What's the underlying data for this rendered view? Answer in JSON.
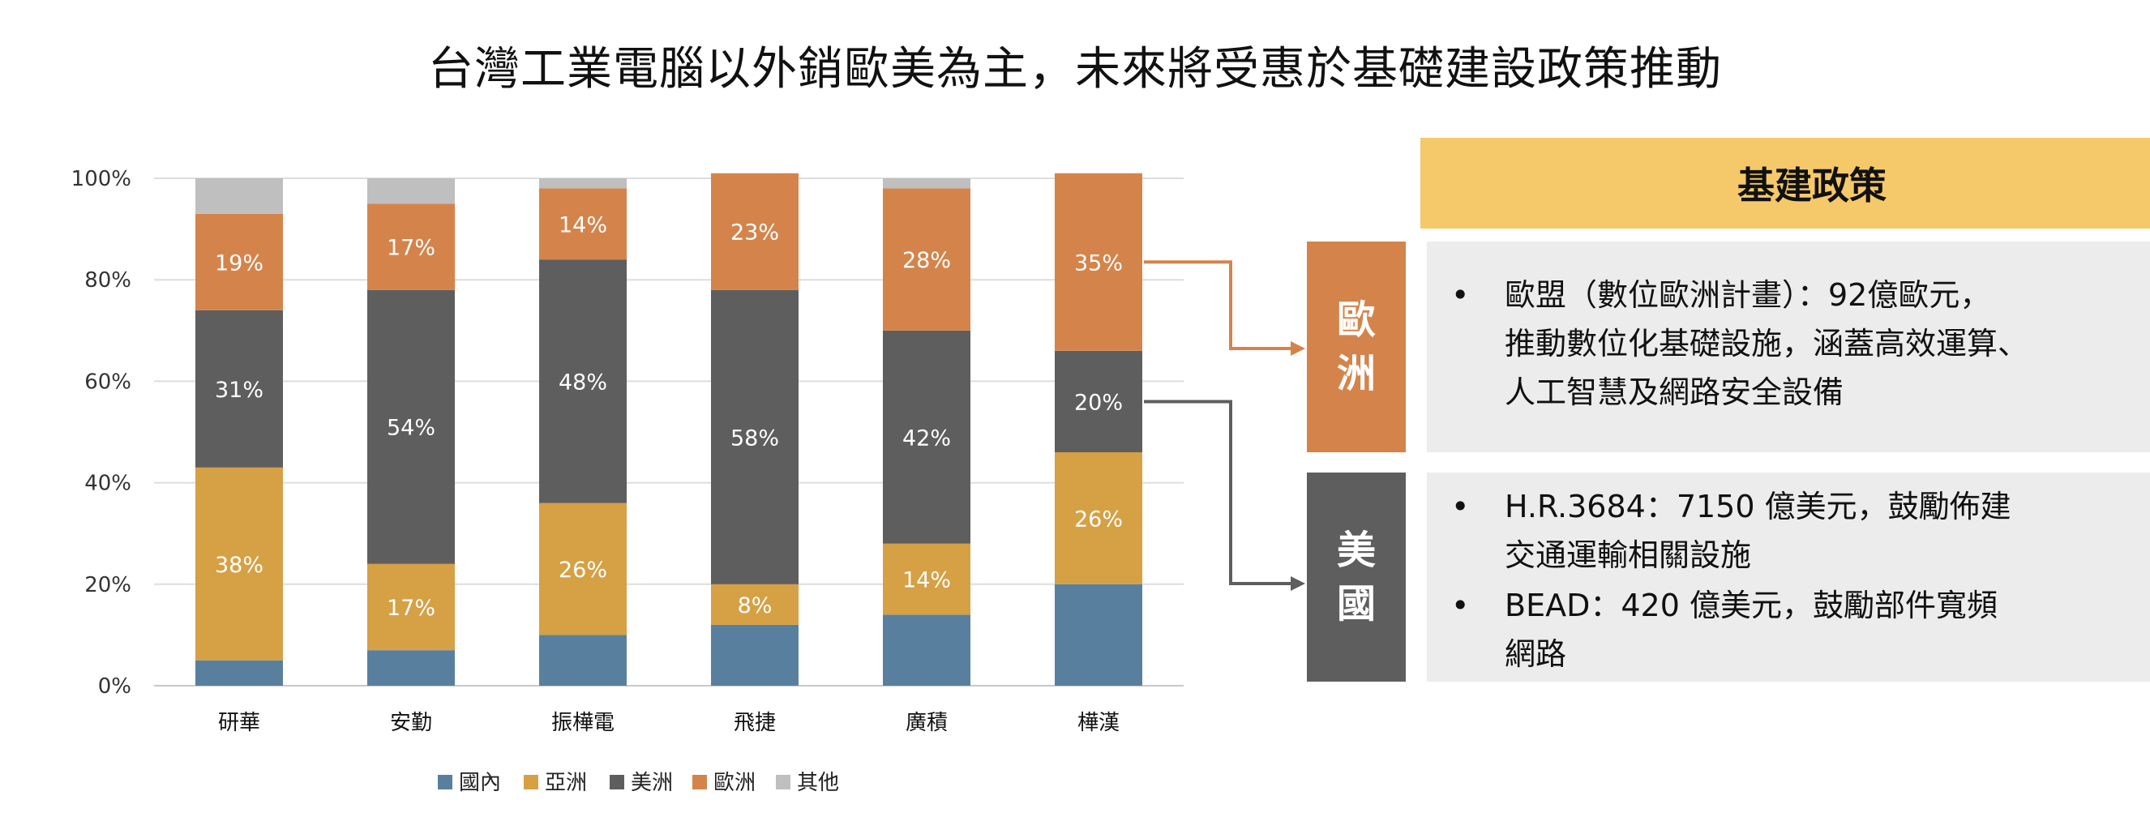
{
  "title": "台灣工業電腦以外銷歐美為主，未來將受惠於基礎建設政策推動",
  "chart_data": {
    "type": "bar",
    "stacked": true,
    "percent": true,
    "categories": [
      "研華",
      "安勤",
      "振樺電",
      "飛捷",
      "廣積",
      "樺漢"
    ],
    "series": [
      {
        "name": "國內",
        "color": "#58809E",
        "values": [
          5,
          7,
          10,
          12,
          14,
          20
        ],
        "labels": [
          "",
          "",
          "",
          "",
          "",
          ""
        ]
      },
      {
        "name": "亞洲",
        "color": "#D6A044",
        "values": [
          38,
          17,
          26,
          8,
          14,
          26
        ],
        "labels": [
          "38%",
          "17%",
          "26%",
          "8%",
          "14%",
          "26%"
        ]
      },
      {
        "name": "美洲",
        "color": "#5E5E5E",
        "values": [
          31,
          54,
          48,
          58,
          42,
          20
        ],
        "labels": [
          "31%",
          "54%",
          "48%",
          "58%",
          "42%",
          "20%"
        ]
      },
      {
        "name": "歐洲",
        "color": "#D4844B",
        "values": [
          19,
          17,
          14,
          23,
          28,
          35
        ],
        "labels": [
          "19%",
          "17%",
          "14%",
          "23%",
          "28%",
          "35%"
        ]
      },
      {
        "name": "其他",
        "color": "#BFBFBF",
        "values": [
          7,
          5,
          2,
          0,
          2,
          0
        ],
        "labels": [
          "",
          "",
          "",
          "",
          "",
          ""
        ]
      }
    ],
    "y_ticks": [
      "0%",
      "20%",
      "40%",
      "60%",
      "80%",
      "100%"
    ],
    "ylim": [
      0,
      100
    ],
    "grid": true,
    "legend": "bottom"
  },
  "policy": {
    "header": "基建政策",
    "europe": {
      "label_line1": "歐",
      "label_line2": "洲",
      "color": "#D4844B",
      "items": [
        [
          "歐盟（數位歐洲計畫）：92億歐元，",
          "推動數位化基礎設施，涵蓋高效運算、",
          "人工智慧及網路安全設備"
        ]
      ]
    },
    "us": {
      "label_line1": "美",
      "label_line2": "國",
      "color": "#5E5E5E",
      "items": [
        [
          "H.R.3684：7150 億美元，鼓勵佈建",
          "交通運輸相關設施"
        ],
        [
          "BEAD：420 億美元，鼓勵部件寬頻",
          "網路"
        ]
      ]
    },
    "bullet": "•"
  }
}
